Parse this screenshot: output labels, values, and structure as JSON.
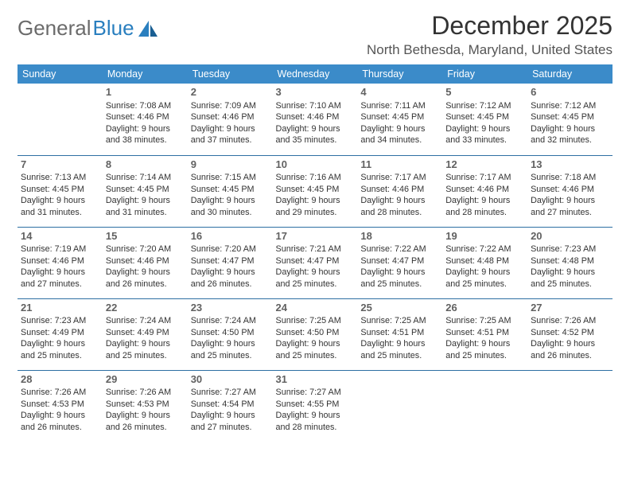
{
  "logo": {
    "text1": "General",
    "text2": "Blue"
  },
  "title": "December 2025",
  "location": "North Bethesda, Maryland, United States",
  "weekdays": [
    "Sunday",
    "Monday",
    "Tuesday",
    "Wednesday",
    "Thursday",
    "Friday",
    "Saturday"
  ],
  "header_bg": "#3b8bc9",
  "rule_color": "#2d6fa3",
  "text_color": "#333333",
  "daynum_color": "#616161",
  "background": "#ffffff",
  "fontsize_title": 32,
  "fontsize_location": 17,
  "fontsize_header": 12.5,
  "fontsize_cell": 10.8,
  "fontsize_daynum": 13,
  "rows": [
    [
      null,
      {
        "n": "1",
        "sr": "Sunrise: 7:08 AM",
        "ss": "Sunset: 4:46 PM",
        "d1": "Daylight: 9 hours",
        "d2": "and 38 minutes."
      },
      {
        "n": "2",
        "sr": "Sunrise: 7:09 AM",
        "ss": "Sunset: 4:46 PM",
        "d1": "Daylight: 9 hours",
        "d2": "and 37 minutes."
      },
      {
        "n": "3",
        "sr": "Sunrise: 7:10 AM",
        "ss": "Sunset: 4:46 PM",
        "d1": "Daylight: 9 hours",
        "d2": "and 35 minutes."
      },
      {
        "n": "4",
        "sr": "Sunrise: 7:11 AM",
        "ss": "Sunset: 4:45 PM",
        "d1": "Daylight: 9 hours",
        "d2": "and 34 minutes."
      },
      {
        "n": "5",
        "sr": "Sunrise: 7:12 AM",
        "ss": "Sunset: 4:45 PM",
        "d1": "Daylight: 9 hours",
        "d2": "and 33 minutes."
      },
      {
        "n": "6",
        "sr": "Sunrise: 7:12 AM",
        "ss": "Sunset: 4:45 PM",
        "d1": "Daylight: 9 hours",
        "d2": "and 32 minutes."
      }
    ],
    [
      {
        "n": "7",
        "sr": "Sunrise: 7:13 AM",
        "ss": "Sunset: 4:45 PM",
        "d1": "Daylight: 9 hours",
        "d2": "and 31 minutes."
      },
      {
        "n": "8",
        "sr": "Sunrise: 7:14 AM",
        "ss": "Sunset: 4:45 PM",
        "d1": "Daylight: 9 hours",
        "d2": "and 31 minutes."
      },
      {
        "n": "9",
        "sr": "Sunrise: 7:15 AM",
        "ss": "Sunset: 4:45 PM",
        "d1": "Daylight: 9 hours",
        "d2": "and 30 minutes."
      },
      {
        "n": "10",
        "sr": "Sunrise: 7:16 AM",
        "ss": "Sunset: 4:45 PM",
        "d1": "Daylight: 9 hours",
        "d2": "and 29 minutes."
      },
      {
        "n": "11",
        "sr": "Sunrise: 7:17 AM",
        "ss": "Sunset: 4:46 PM",
        "d1": "Daylight: 9 hours",
        "d2": "and 28 minutes."
      },
      {
        "n": "12",
        "sr": "Sunrise: 7:17 AM",
        "ss": "Sunset: 4:46 PM",
        "d1": "Daylight: 9 hours",
        "d2": "and 28 minutes."
      },
      {
        "n": "13",
        "sr": "Sunrise: 7:18 AM",
        "ss": "Sunset: 4:46 PM",
        "d1": "Daylight: 9 hours",
        "d2": "and 27 minutes."
      }
    ],
    [
      {
        "n": "14",
        "sr": "Sunrise: 7:19 AM",
        "ss": "Sunset: 4:46 PM",
        "d1": "Daylight: 9 hours",
        "d2": "and 27 minutes."
      },
      {
        "n": "15",
        "sr": "Sunrise: 7:20 AM",
        "ss": "Sunset: 4:46 PM",
        "d1": "Daylight: 9 hours",
        "d2": "and 26 minutes."
      },
      {
        "n": "16",
        "sr": "Sunrise: 7:20 AM",
        "ss": "Sunset: 4:47 PM",
        "d1": "Daylight: 9 hours",
        "d2": "and 26 minutes."
      },
      {
        "n": "17",
        "sr": "Sunrise: 7:21 AM",
        "ss": "Sunset: 4:47 PM",
        "d1": "Daylight: 9 hours",
        "d2": "and 25 minutes."
      },
      {
        "n": "18",
        "sr": "Sunrise: 7:22 AM",
        "ss": "Sunset: 4:47 PM",
        "d1": "Daylight: 9 hours",
        "d2": "and 25 minutes."
      },
      {
        "n": "19",
        "sr": "Sunrise: 7:22 AM",
        "ss": "Sunset: 4:48 PM",
        "d1": "Daylight: 9 hours",
        "d2": "and 25 minutes."
      },
      {
        "n": "20",
        "sr": "Sunrise: 7:23 AM",
        "ss": "Sunset: 4:48 PM",
        "d1": "Daylight: 9 hours",
        "d2": "and 25 minutes."
      }
    ],
    [
      {
        "n": "21",
        "sr": "Sunrise: 7:23 AM",
        "ss": "Sunset: 4:49 PM",
        "d1": "Daylight: 9 hours",
        "d2": "and 25 minutes."
      },
      {
        "n": "22",
        "sr": "Sunrise: 7:24 AM",
        "ss": "Sunset: 4:49 PM",
        "d1": "Daylight: 9 hours",
        "d2": "and 25 minutes."
      },
      {
        "n": "23",
        "sr": "Sunrise: 7:24 AM",
        "ss": "Sunset: 4:50 PM",
        "d1": "Daylight: 9 hours",
        "d2": "and 25 minutes."
      },
      {
        "n": "24",
        "sr": "Sunrise: 7:25 AM",
        "ss": "Sunset: 4:50 PM",
        "d1": "Daylight: 9 hours",
        "d2": "and 25 minutes."
      },
      {
        "n": "25",
        "sr": "Sunrise: 7:25 AM",
        "ss": "Sunset: 4:51 PM",
        "d1": "Daylight: 9 hours",
        "d2": "and 25 minutes."
      },
      {
        "n": "26",
        "sr": "Sunrise: 7:25 AM",
        "ss": "Sunset: 4:51 PM",
        "d1": "Daylight: 9 hours",
        "d2": "and 25 minutes."
      },
      {
        "n": "27",
        "sr": "Sunrise: 7:26 AM",
        "ss": "Sunset: 4:52 PM",
        "d1": "Daylight: 9 hours",
        "d2": "and 26 minutes."
      }
    ],
    [
      {
        "n": "28",
        "sr": "Sunrise: 7:26 AM",
        "ss": "Sunset: 4:53 PM",
        "d1": "Daylight: 9 hours",
        "d2": "and 26 minutes."
      },
      {
        "n": "29",
        "sr": "Sunrise: 7:26 AM",
        "ss": "Sunset: 4:53 PM",
        "d1": "Daylight: 9 hours",
        "d2": "and 26 minutes."
      },
      {
        "n": "30",
        "sr": "Sunrise: 7:27 AM",
        "ss": "Sunset: 4:54 PM",
        "d1": "Daylight: 9 hours",
        "d2": "and 27 minutes."
      },
      {
        "n": "31",
        "sr": "Sunrise: 7:27 AM",
        "ss": "Sunset: 4:55 PM",
        "d1": "Daylight: 9 hours",
        "d2": "and 28 minutes."
      },
      null,
      null,
      null
    ]
  ]
}
